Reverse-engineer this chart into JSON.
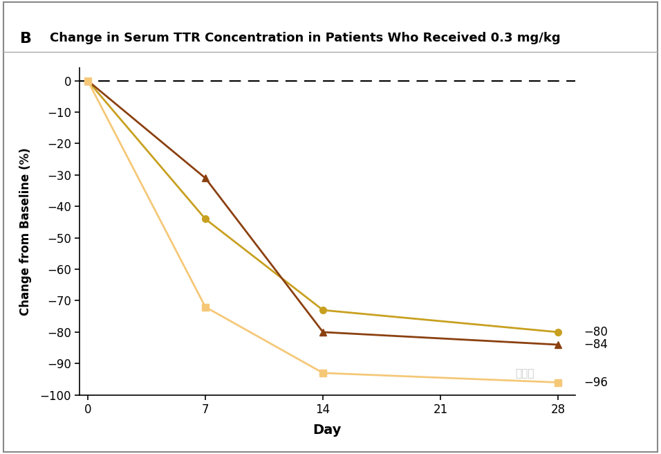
{
  "title": "Change in Serum TTR Concentration in Patients Who Received 0.3 mg/kg",
  "panel_label": "B",
  "xlabel": "Day",
  "ylabel": "Change from Baseline (%)",
  "xlim": [
    -0.5,
    29
  ],
  "ylim": [
    -100,
    4
  ],
  "xticks": [
    0,
    7,
    14,
    21,
    28
  ],
  "yticks": [
    0,
    -10,
    -20,
    -30,
    -40,
    -50,
    -60,
    -70,
    -80,
    -90,
    -100
  ],
  "ytick_labels": [
    "0",
    "−10",
    "−20",
    "−30",
    "−40",
    "−50",
    "−60",
    "−70",
    "−80",
    "−90",
    "−100"
  ],
  "series": [
    {
      "days": [
        0,
        7,
        14,
        28
      ],
      "values": [
        0,
        -44,
        -73,
        -80
      ],
      "color": "#C8A020",
      "marker": "o",
      "label": "−80",
      "linewidth": 2.0,
      "markersize": 7
    },
    {
      "days": [
        0,
        7,
        14,
        28
      ],
      "values": [
        0,
        -31,
        -80,
        -84
      ],
      "color": "#8B4010",
      "marker": "^",
      "label": "−84",
      "linewidth": 2.0,
      "markersize": 7
    },
    {
      "days": [
        0,
        7,
        14,
        28
      ],
      "values": [
        0,
        -72,
        -93,
        -96
      ],
      "color": "#F5C878",
      "marker": "s",
      "label": "−96",
      "linewidth": 2.0,
      "markersize": 7
    }
  ],
  "background_color": "#FFFFFF",
  "annotation_fontsize": 12,
  "watermark": "量子位"
}
